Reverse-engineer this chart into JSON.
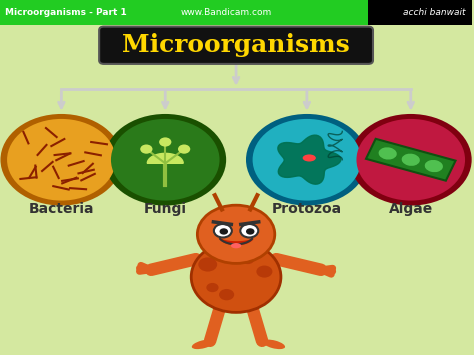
{
  "title": "Microorganisms",
  "title_color": "#FFD700",
  "title_bg": "#1a1a1a",
  "bg_color": "#d4e8a0",
  "header_bg": "#22cc22",
  "header_text": "Microorganisms - Part 1",
  "header_text2": "www.Bandicam.com",
  "header_text3": "acchi banwait",
  "microorganisms": [
    "Bacteria",
    "Fungi",
    "Protozoa",
    "Algae"
  ],
  "circle_colors": [
    "#E8A020",
    "#2a7a1a",
    "#20b0c0",
    "#c01840"
  ],
  "circle_border_colors": [
    "#b06000",
    "#1a5000",
    "#006080",
    "#800010"
  ],
  "label_color": "#333333",
  "arrow_color": "#cccccc"
}
